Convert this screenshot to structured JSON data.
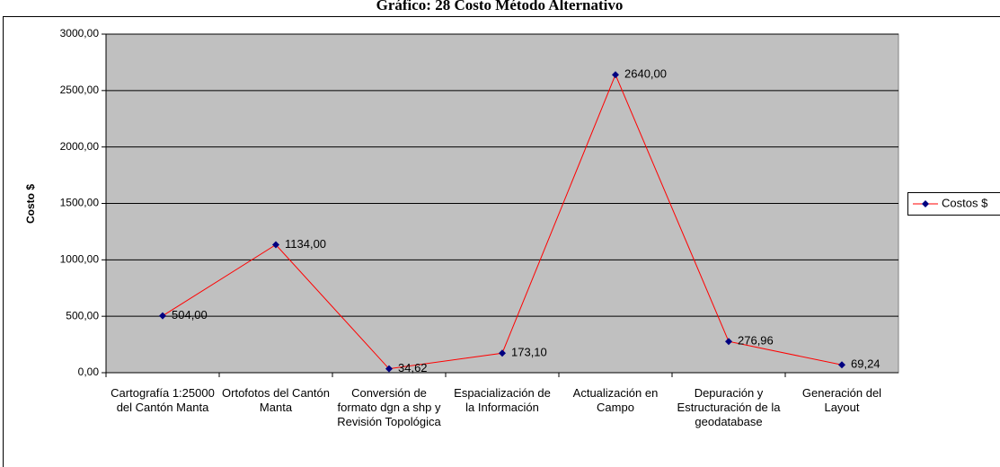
{
  "chart_data": {
    "type": "line",
    "title": "Gráfico: 28 Costo Método Alternativo",
    "y_label": "Costo $",
    "categories": [
      "Cartografía 1:25000 del Cantón Manta",
      "Ortofotos del Cantón Manta",
      "Conversión de formato dgn a shp y Revisión Topológica",
      "Espacialización de la Información",
      "Actualización en Campo",
      "Depuración y Estructuración de la geodatabase",
      "Generación del Layout"
    ],
    "series": [
      {
        "name": "Costos $",
        "color": "#ff0000",
        "marker_color": "#000080",
        "values": [
          504,
          1134,
          34.62,
          173.1,
          2640,
          276.96,
          69.24
        ],
        "value_labels": [
          "504,00",
          "1134,00",
          "34,62",
          "173,10",
          "2640,00",
          "276,96",
          "69,24"
        ]
      }
    ],
    "ylim": [
      0,
      3000
    ],
    "yticks": [
      {
        "value": 0,
        "label": "0,00"
      },
      {
        "value": 500,
        "label": "500,00"
      },
      {
        "value": 1000,
        "label": "1000,00"
      },
      {
        "value": 1500,
        "label": "1500,00"
      },
      {
        "value": 2000,
        "label": "2000,00"
      },
      {
        "value": 2500,
        "label": "2500,00"
      },
      {
        "value": 3000,
        "label": "3000,00"
      }
    ],
    "grid": true,
    "legend": "right",
    "plot_background": "#c0c0c0"
  }
}
